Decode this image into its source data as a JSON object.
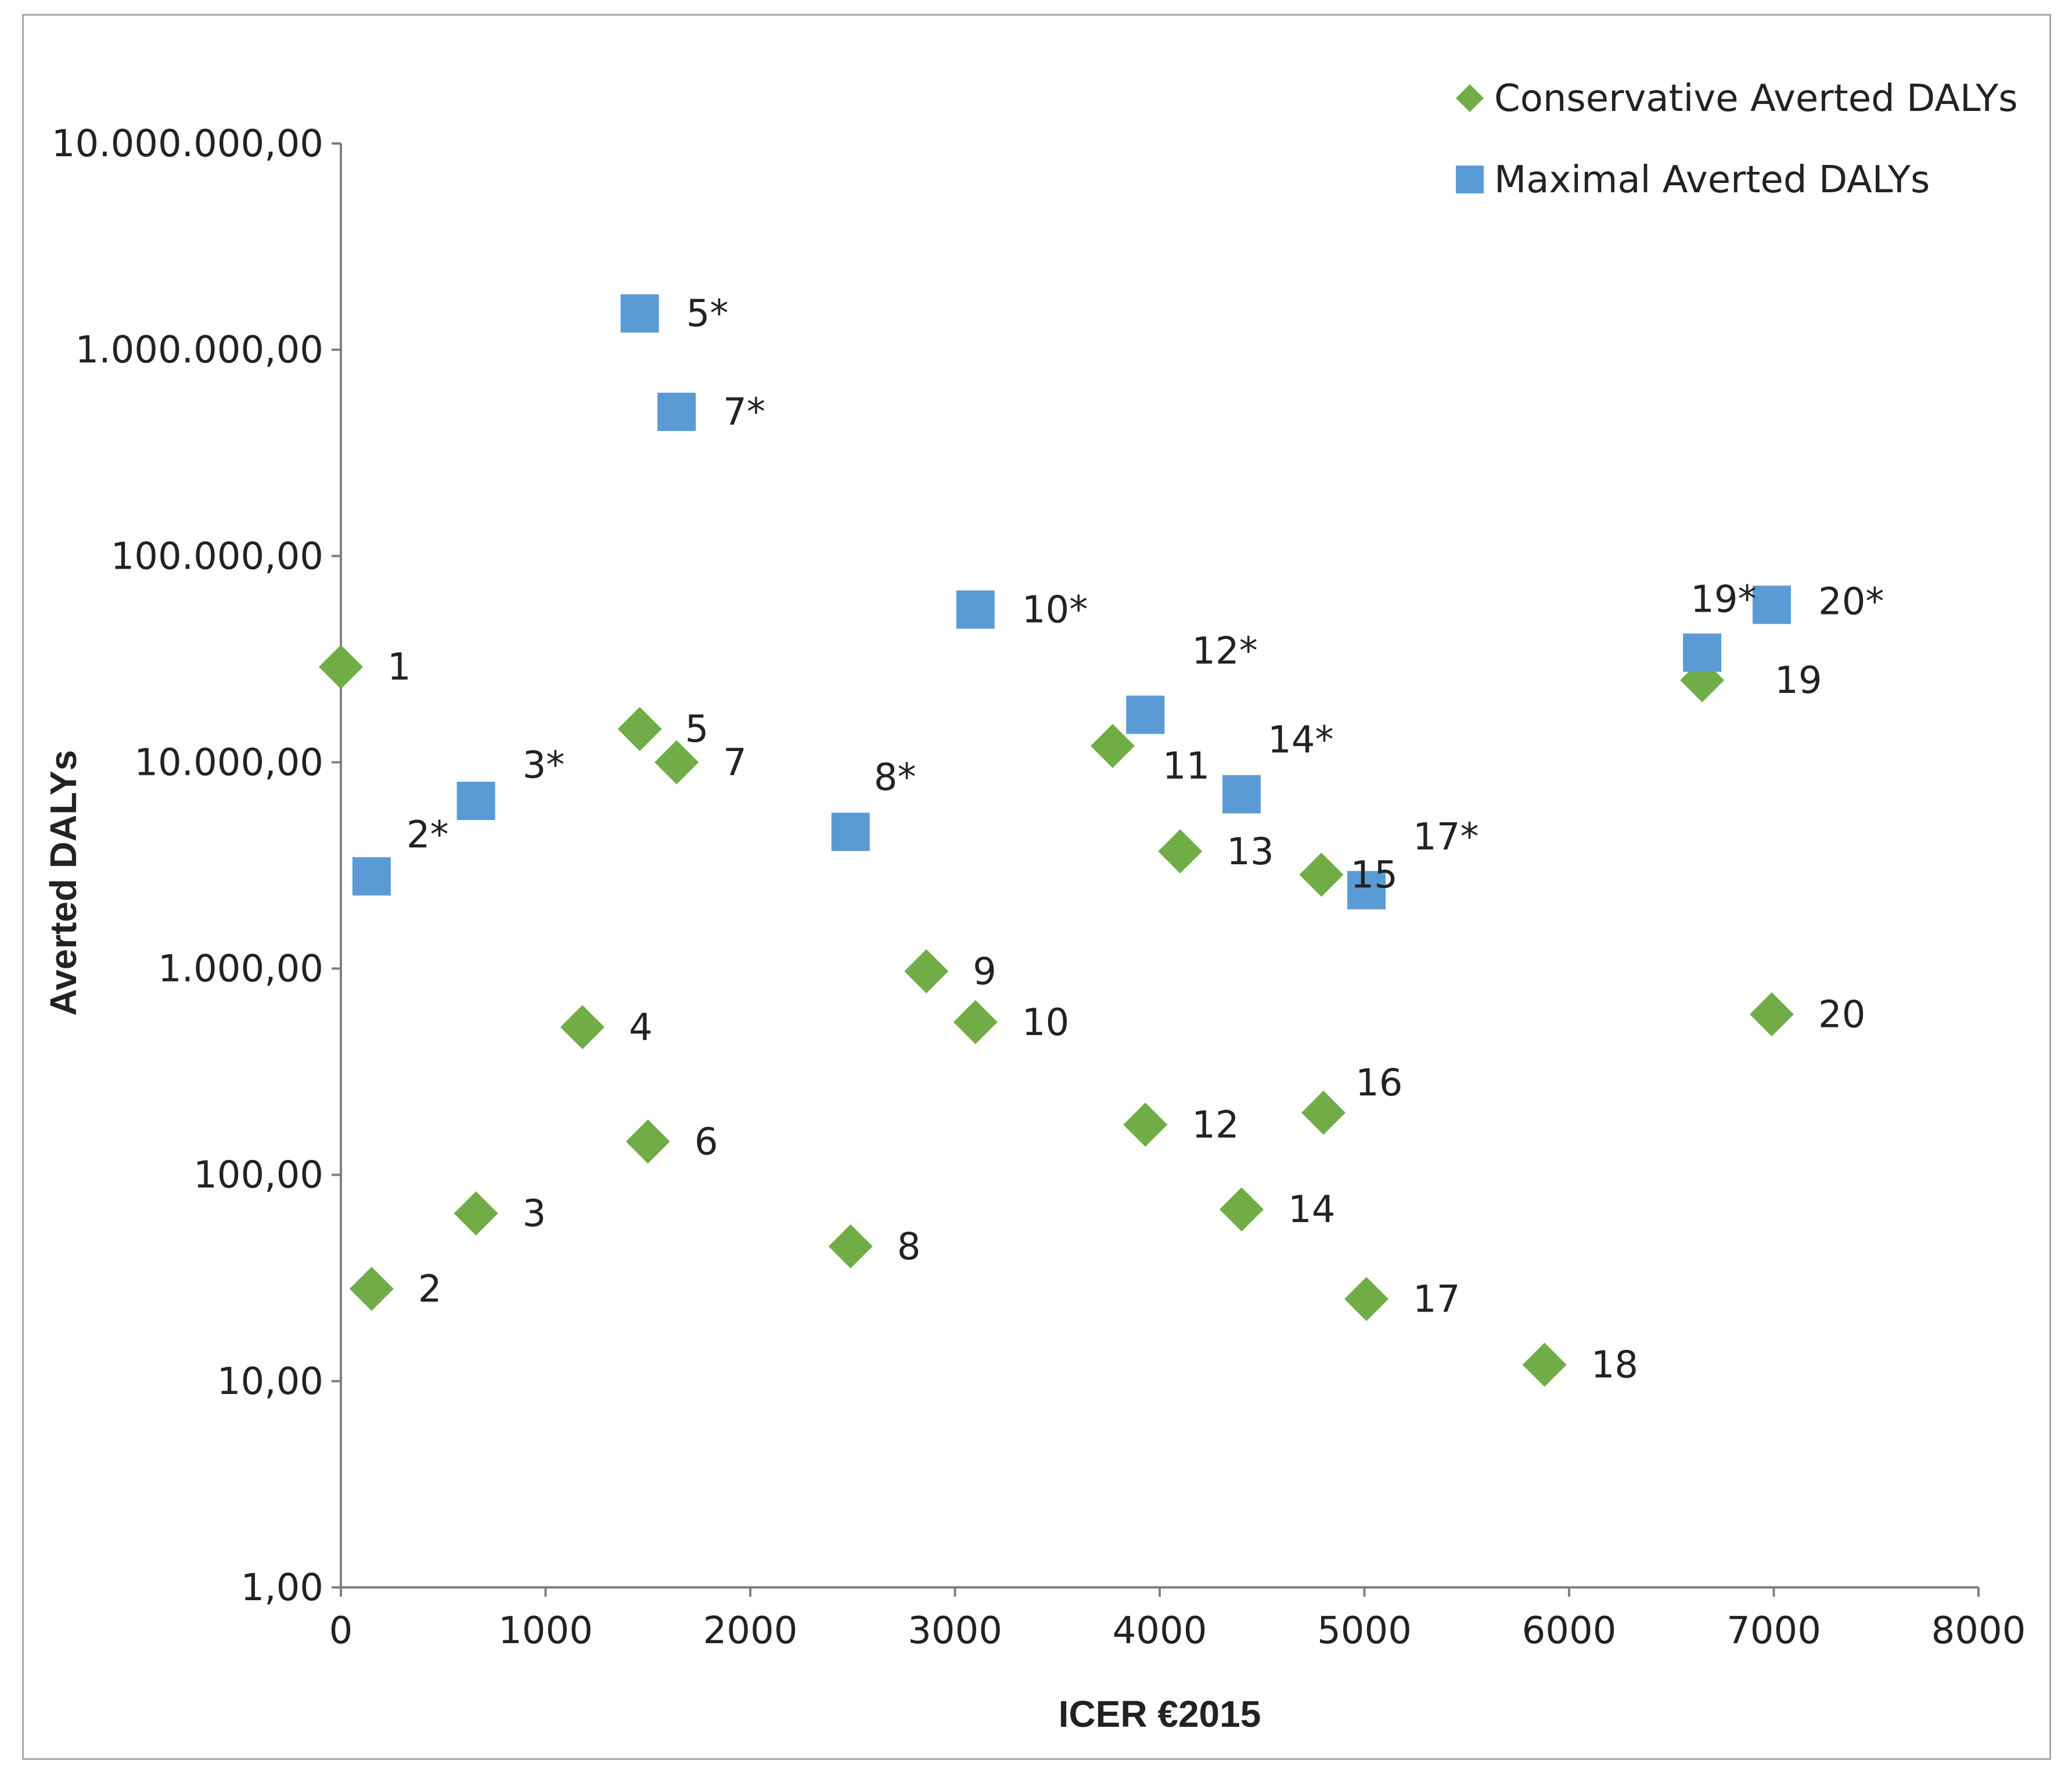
{
  "colors": {
    "conservative": "#70ad47",
    "maximal": "#5b9bd5",
    "axis": "#7f7f7f",
    "text": "#222222"
  },
  "chart_data": {
    "type": "scatter",
    "title": "",
    "xlabel": "ICER €2015",
    "ylabel": "Averted DALYs",
    "xlim": [
      0,
      8000
    ],
    "ylim": [
      1,
      10000000
    ],
    "yscale": "log",
    "grid": false,
    "legend_position": "top-right",
    "x_ticks": [
      0,
      1000,
      2000,
      3000,
      4000,
      5000,
      6000,
      7000,
      8000
    ],
    "x_tick_labels": [
      "0",
      "1000",
      "2000",
      "3000",
      "4000",
      "5000",
      "6000",
      "7000",
      "8000"
    ],
    "y_ticks": [
      1,
      10,
      100,
      1000,
      10000,
      100000,
      1000000,
      10000000
    ],
    "y_tick_labels": [
      "1,00",
      "10,00",
      "100,00",
      "1.000,00",
      "10.000,00",
      "100.000,00",
      "1.000.000,00",
      "10.000.000,00"
    ],
    "series": [
      {
        "name": "Conservative Averted DALYs",
        "marker": "diamond",
        "points": [
          {
            "x": 0,
            "y": 29000,
            "label": "1"
          },
          {
            "x": 150,
            "y": 28,
            "label": "2"
          },
          {
            "x": 660,
            "y": 65,
            "label": "3"
          },
          {
            "x": 1180,
            "y": 520,
            "label": "4"
          },
          {
            "x": 1460,
            "y": 14500,
            "label": "5"
          },
          {
            "x": 1500,
            "y": 145,
            "label": "6"
          },
          {
            "x": 1640,
            "y": 10000,
            "label": "7"
          },
          {
            "x": 2490,
            "y": 45,
            "label": "8"
          },
          {
            "x": 2860,
            "y": 970,
            "label": "9"
          },
          {
            "x": 3100,
            "y": 550,
            "label": "10"
          },
          {
            "x": 3770,
            "y": 12000,
            "label": "11"
          },
          {
            "x": 3930,
            "y": 175,
            "label": "12"
          },
          {
            "x": 4100,
            "y": 3700,
            "label": "13"
          },
          {
            "x": 4400,
            "y": 68,
            "label": "14"
          },
          {
            "x": 4790,
            "y": 2850,
            "label": "15"
          },
          {
            "x": 4800,
            "y": 200,
            "label": "16"
          },
          {
            "x": 5010,
            "y": 25,
            "label": "17"
          },
          {
            "x": 5880,
            "y": 12,
            "label": "18"
          },
          {
            "x": 6650,
            "y": 25000,
            "label": "19"
          },
          {
            "x": 6990,
            "y": 600,
            "label": "20"
          }
        ]
      },
      {
        "name": "Maximal Averted DALYs",
        "marker": "square",
        "points": [
          {
            "x": 150,
            "y": 2800,
            "label": "2*"
          },
          {
            "x": 660,
            "y": 6500,
            "label": "3*"
          },
          {
            "x": 1460,
            "y": 1500000,
            "label": "5*"
          },
          {
            "x": 1640,
            "y": 500000,
            "label": "7*"
          },
          {
            "x": 2490,
            "y": 4600,
            "label": "8*"
          },
          {
            "x": 3100,
            "y": 55000,
            "label": "10*"
          },
          {
            "x": 3930,
            "y": 17000,
            "label": "12*"
          },
          {
            "x": 4400,
            "y": 7000,
            "label": "14*"
          },
          {
            "x": 5010,
            "y": 2400,
            "label": "17*"
          },
          {
            "x": 6650,
            "y": 34000,
            "label": "19*"
          },
          {
            "x": 6990,
            "y": 58000,
            "label": "20*"
          }
        ]
      }
    ]
  }
}
